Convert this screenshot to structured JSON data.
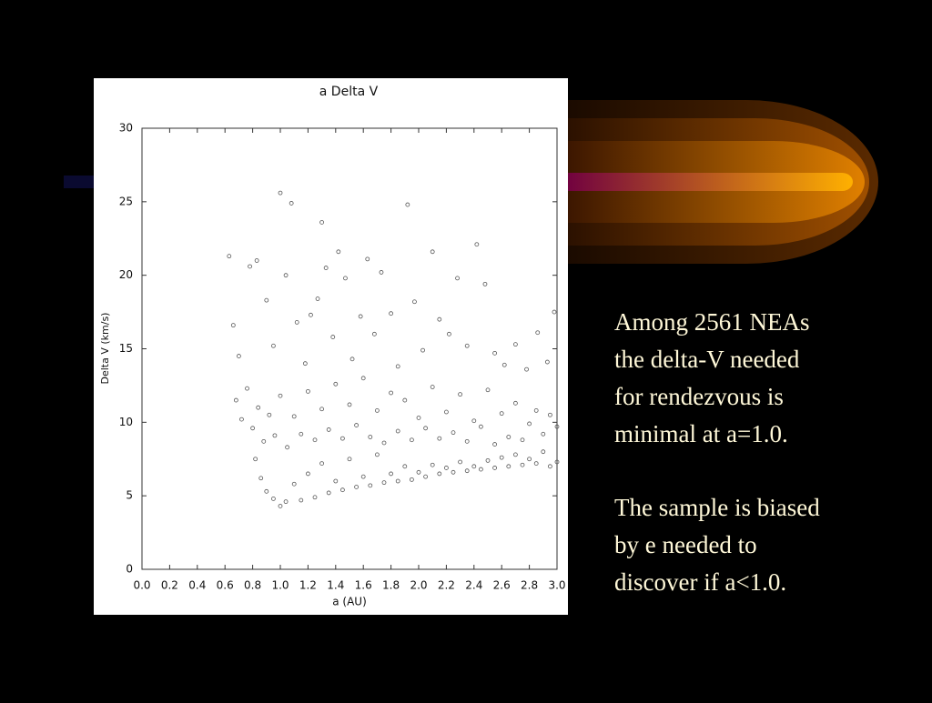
{
  "chart_data": {
    "type": "scatter",
    "title": "a Delta V",
    "x_label": "a (AU)",
    "y_label": "Delta V (km/s)",
    "x": [
      0.82,
      0.86,
      0.9,
      0.95,
      1.0,
      1.04,
      1.1,
      1.15,
      1.2,
      1.25,
      1.3,
      1.35,
      1.4,
      1.45,
      1.5,
      1.55,
      1.6,
      1.65,
      1.7,
      1.75,
      1.8,
      1.85,
      1.9,
      1.95,
      2.0,
      2.05,
      2.1,
      2.15,
      2.2,
      2.25,
      2.3,
      2.35,
      2.4,
      2.45,
      2.5,
      2.55,
      2.6,
      2.65,
      2.7,
      2.75,
      2.8,
      2.85,
      2.9,
      2.95,
      3.0,
      0.68,
      0.72,
      0.76,
      0.8,
      0.84,
      0.88,
      0.92,
      0.96,
      1.0,
      1.05,
      1.1,
      1.15,
      1.2,
      1.25,
      1.3,
      1.35,
      1.4,
      1.45,
      1.5,
      1.55,
      1.6,
      1.65,
      1.7,
      1.75,
      1.8,
      1.85,
      1.9,
      1.95,
      2.0,
      2.05,
      2.1,
      2.15,
      2.2,
      2.25,
      2.3,
      2.35,
      2.4,
      2.45,
      2.5,
      2.55,
      2.6,
      2.65,
      2.7,
      2.75,
      2.8,
      2.85,
      2.9,
      2.95,
      3.0,
      0.63,
      0.66,
      0.7,
      0.78,
      0.83,
      0.9,
      0.95,
      1.0,
      1.04,
      1.08,
      1.12,
      1.18,
      1.22,
      1.27,
      1.3,
      1.33,
      1.38,
      1.42,
      1.47,
      1.52,
      1.58,
      1.63,
      1.68,
      1.73,
      1.8,
      1.85,
      1.92,
      1.97,
      2.03,
      2.1,
      2.15,
      2.22,
      2.28,
      2.35,
      2.42,
      2.48,
      2.55,
      2.62,
      2.7,
      2.78,
      2.86,
      2.93,
      2.98
    ],
    "values": [
      7.5,
      6.2,
      5.3,
      4.8,
      4.3,
      4.6,
      5.8,
      4.7,
      6.5,
      4.9,
      7.2,
      5.2,
      6.0,
      5.4,
      7.5,
      5.6,
      6.3,
      5.7,
      7.8,
      5.9,
      6.5,
      6.0,
      7.0,
      6.1,
      6.6,
      6.3,
      7.1,
      6.5,
      6.9,
      6.6,
      7.3,
      6.7,
      7.0,
      6.8,
      7.4,
      6.9,
      7.6,
      7.0,
      7.8,
      7.1,
      7.5,
      7.2,
      8.0,
      7.0,
      7.3,
      11.5,
      10.2,
      12.3,
      9.6,
      11.0,
      8.7,
      10.5,
      9.1,
      11.8,
      8.3,
      10.4,
      9.2,
      12.1,
      8.8,
      10.9,
      9.5,
      12.6,
      8.9,
      11.2,
      9.8,
      13.0,
      9.0,
      10.8,
      8.6,
      12.0,
      9.4,
      11.5,
      8.8,
      10.3,
      9.6,
      12.4,
      8.9,
      10.7,
      9.3,
      11.9,
      8.7,
      10.1,
      9.7,
      12.2,
      8.5,
      10.6,
      9.0,
      11.3,
      8.8,
      9.9,
      10.8,
      9.2,
      10.5,
      9.7,
      21.3,
      16.6,
      14.5,
      20.6,
      21.0,
      18.3,
      15.2,
      25.6,
      20.0,
      24.9,
      16.8,
      14.0,
      17.3,
      18.4,
      23.6,
      20.5,
      15.8,
      21.6,
      19.8,
      14.3,
      17.2,
      21.1,
      16.0,
      20.2,
      17.4,
      13.8,
      24.8,
      18.2,
      14.9,
      21.6,
      17.0,
      16.0,
      19.8,
      15.2,
      22.1,
      19.4,
      14.7,
      13.9,
      15.3,
      13.6,
      16.1,
      14.1,
      17.5
    ],
    "color": "#555555",
    "xlim": [
      0,
      3
    ],
    "ylim": [
      0,
      30
    ],
    "xticks": [
      {
        "value": 0,
        "label": "0.0"
      },
      0.2,
      0.4,
      0.6,
      0.8,
      {
        "value": 1,
        "label": "1.0"
      },
      1.2,
      1.4,
      1.6,
      1.8,
      {
        "value": 2,
        "label": "2.0"
      },
      2.2,
      2.4,
      2.6,
      2.8,
      {
        "value": 3,
        "label": "3.0"
      }
    ],
    "yticks": [
      0,
      5,
      10,
      15,
      20,
      25,
      30
    ]
  },
  "slide_text": {
    "paragraphs": [
      {
        "lines": [
          "Among 2561 NEAs",
          "the delta-V needed",
          "for rendezvous is",
          "minimal at a=1.0."
        ]
      },
      {
        "lines": [
          "The sample is biased",
          "by e needed to",
          "discover if a<1.0."
        ]
      }
    ]
  }
}
